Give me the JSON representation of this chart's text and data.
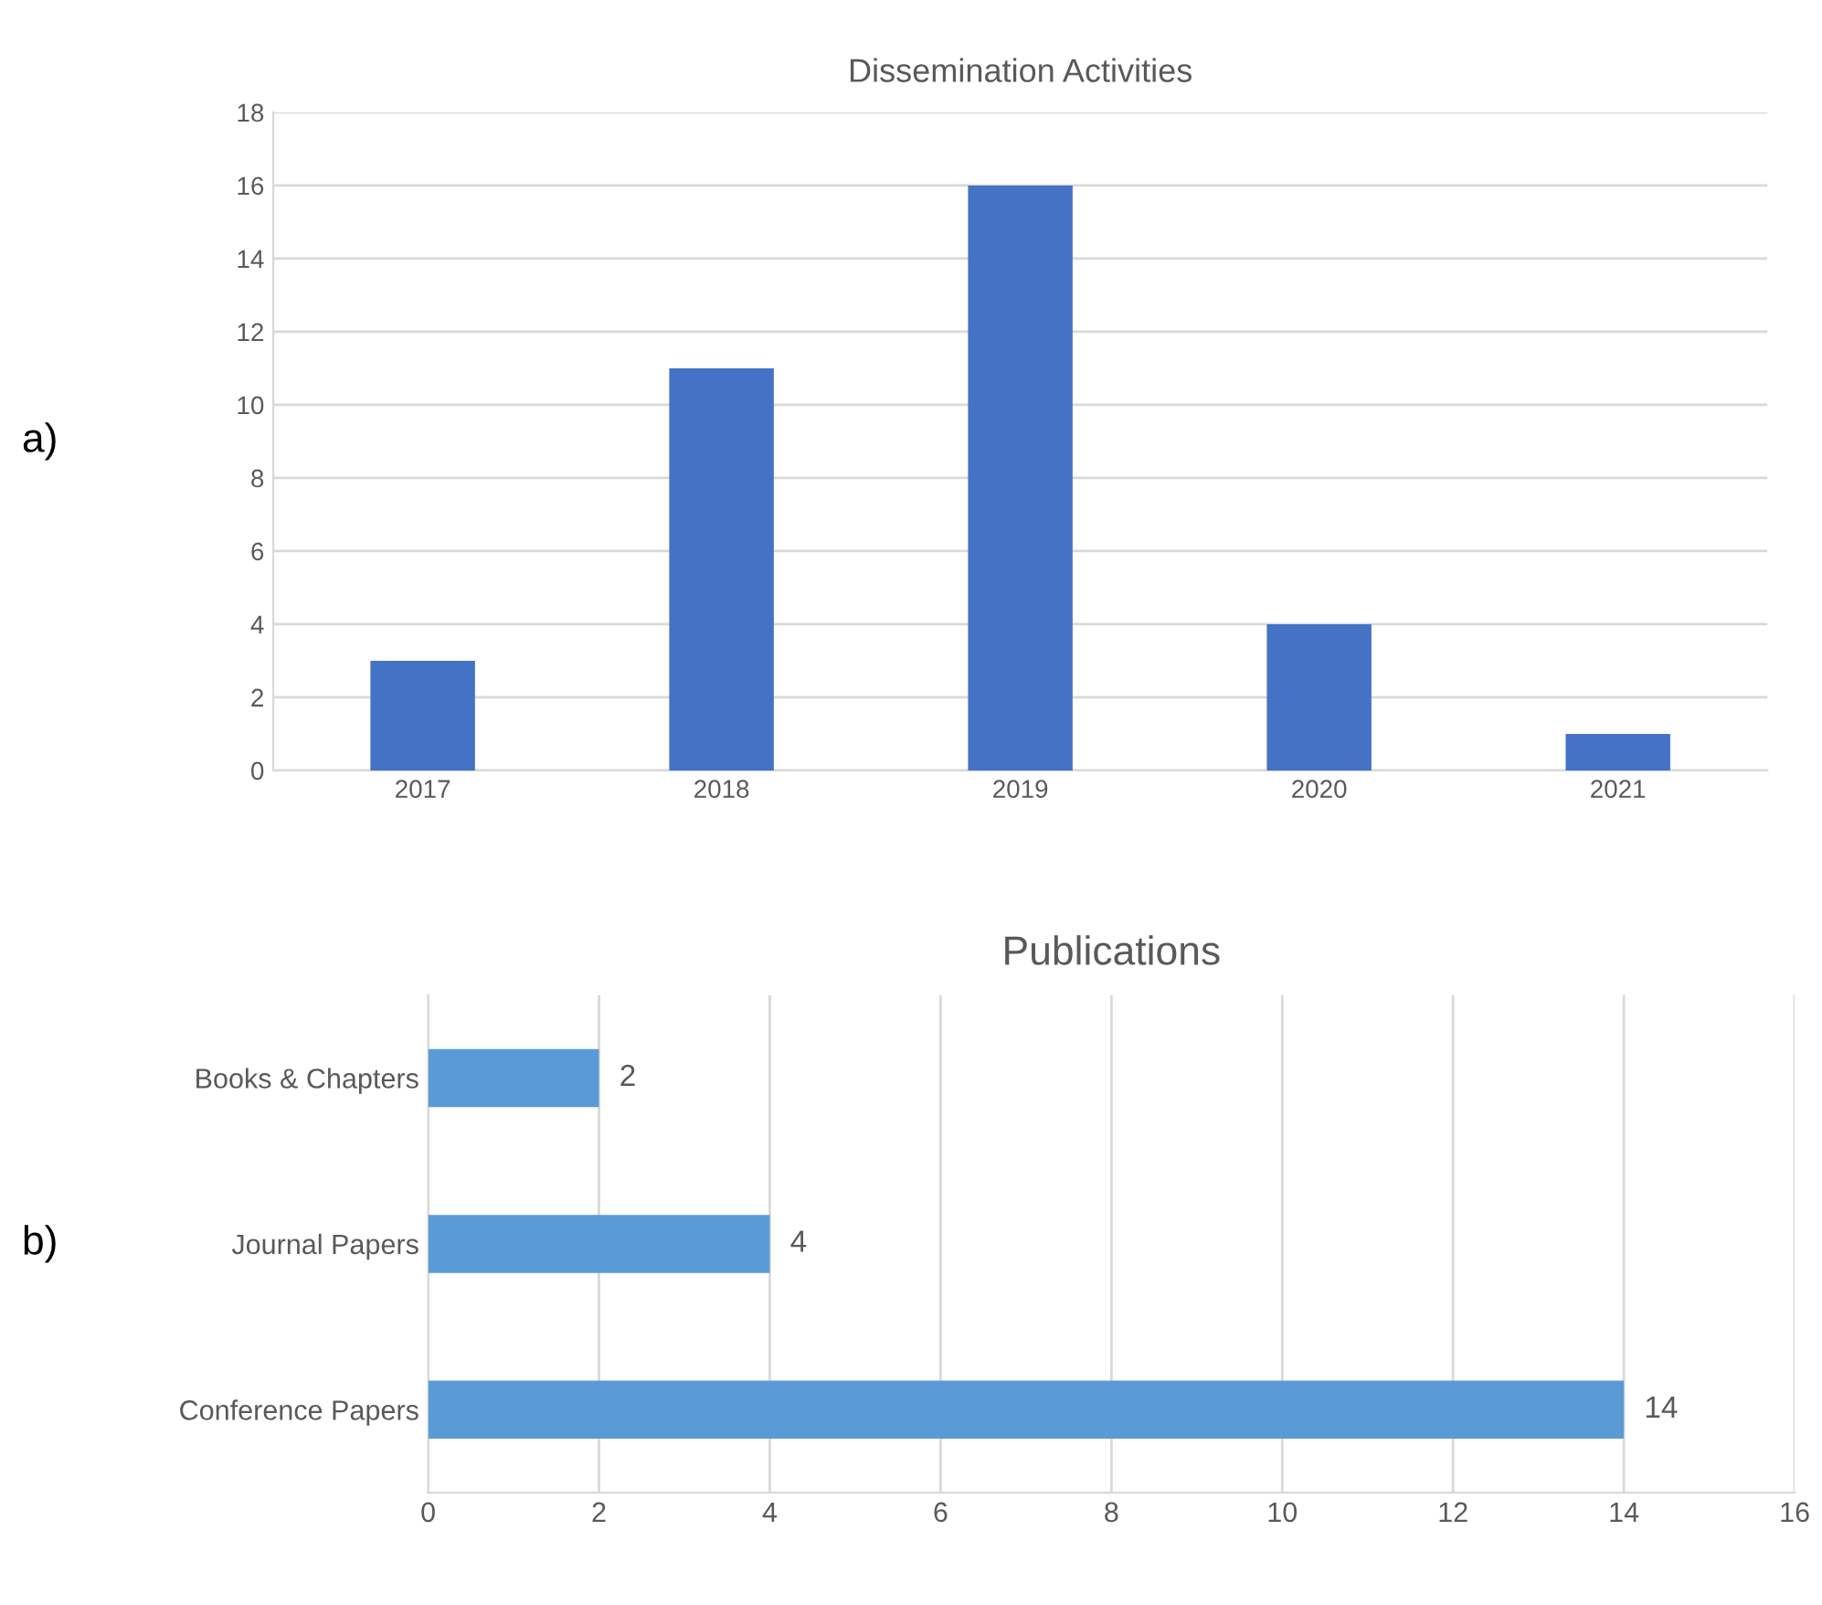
{
  "chart_data": [
    {
      "type": "bar",
      "title": "Dissemination Activities",
      "categories": [
        "2017",
        "2018",
        "2019",
        "2020",
        "2021"
      ],
      "values": [
        3,
        11,
        16,
        4,
        1
      ],
      "color": "#4472c4",
      "ylim": [
        0,
        18
      ],
      "yticks": [
        0,
        2,
        4,
        6,
        8,
        10,
        12,
        14,
        16,
        18
      ],
      "grid": "y",
      "annotations": [
        "a)"
      ]
    },
    {
      "type": "bar",
      "orientation": "horizontal",
      "title": "Publications",
      "categories": [
        "Books & Chapters",
        "Journal Papers",
        "Conference Papers"
      ],
      "values": [
        2,
        4,
        14
      ],
      "color": "#5b9bd5",
      "xlim": [
        0,
        16
      ],
      "xticks": [
        0,
        2,
        4,
        6,
        8,
        10,
        12,
        14,
        16
      ],
      "grid": "x",
      "data_labels": true,
      "annotations": [
        "b)"
      ]
    }
  ]
}
